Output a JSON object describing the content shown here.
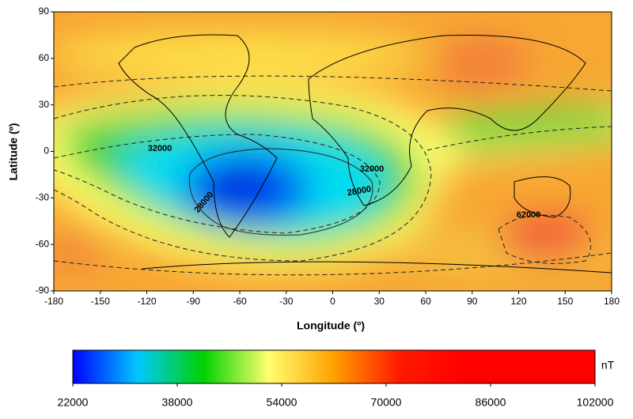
{
  "chart_data": {
    "type": "heatmap",
    "xlabel": "Longitude (º)",
    "ylabel": "Latitude (º)",
    "xlim": [
      -180,
      180
    ],
    "xticks": [
      -180,
      -150,
      -120,
      -90,
      -60,
      -30,
      0,
      30,
      60,
      90,
      120,
      150,
      180
    ],
    "ylim": [
      -90,
      90
    ],
    "yticks": [
      -90,
      -60,
      -30,
      0,
      30,
      60,
      90
    ],
    "contour_labels": [
      32000,
      28000,
      32000,
      28000,
      62000
    ],
    "colorbar": {
      "label": "nT",
      "lim": [
        22000,
        102000
      ],
      "ticks": [
        22000,
        38000,
        54000,
        70000,
        86000,
        102000
      ],
      "colormap": [
        "#0000ff",
        "#00c8ff",
        "#00d200",
        "#ffff70",
        "#ffa000",
        "#ff1a00",
        "#ff0000",
        "#ff0000",
        "#ff0000"
      ]
    }
  }
}
